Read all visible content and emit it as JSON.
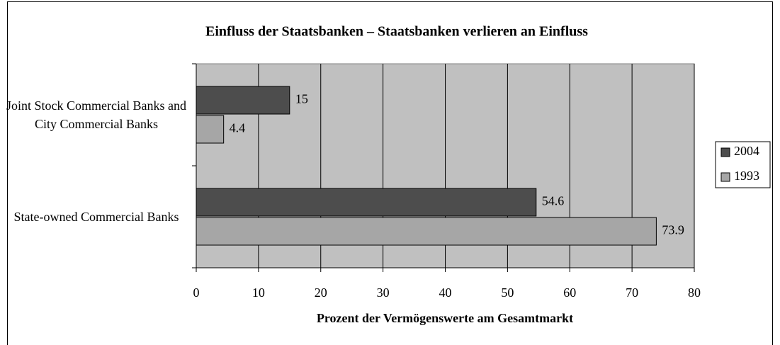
{
  "chart_data": {
    "type": "bar",
    "orientation": "horizontal",
    "title": "Einfluss der Staatsbanken – Staatsbanken verlieren an Einfluss",
    "x_label": "Prozent der Vermögenswerte am Gesamtmarkt",
    "categories": [
      "Joint Stock Commercial Banks and City Commercial Banks",
      "State-owned Commercial Banks"
    ],
    "series": [
      {
        "name": "2004",
        "color": "#4d4d4d",
        "values": [
          15,
          54.6
        ]
      },
      {
        "name": "1993",
        "color": "#a6a6a6",
        "values": [
          4.4,
          73.9
        ]
      }
    ],
    "xlim": [
      0,
      80
    ],
    "xticks": [
      0,
      10,
      20,
      30,
      40,
      50,
      60,
      70,
      80
    ],
    "grid": true,
    "legend": "right"
  }
}
